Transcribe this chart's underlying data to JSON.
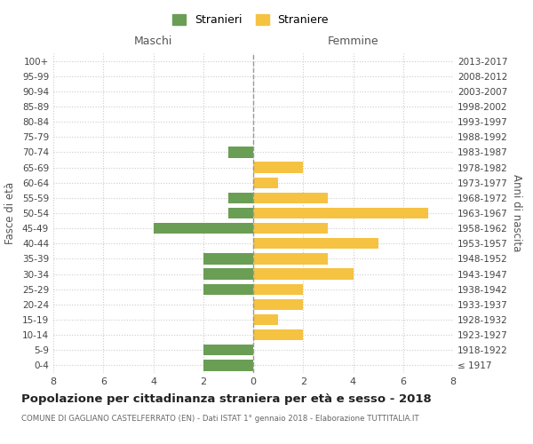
{
  "age_groups": [
    "100+",
    "95-99",
    "90-94",
    "85-89",
    "80-84",
    "75-79",
    "70-74",
    "65-69",
    "60-64",
    "55-59",
    "50-54",
    "45-49",
    "40-44",
    "35-39",
    "30-34",
    "25-29",
    "20-24",
    "15-19",
    "10-14",
    "5-9",
    "0-4"
  ],
  "birth_years": [
    "≤ 1917",
    "1918-1922",
    "1923-1927",
    "1928-1932",
    "1933-1937",
    "1938-1942",
    "1943-1947",
    "1948-1952",
    "1953-1957",
    "1958-1962",
    "1963-1967",
    "1968-1972",
    "1973-1977",
    "1978-1982",
    "1983-1987",
    "1988-1992",
    "1993-1997",
    "1998-2002",
    "2003-2007",
    "2008-2012",
    "2013-2017"
  ],
  "males": [
    0,
    0,
    0,
    0,
    0,
    0,
    1,
    0,
    0,
    1,
    1,
    4,
    0,
    2,
    2,
    2,
    0,
    0,
    0,
    2,
    2
  ],
  "females": [
    0,
    0,
    0,
    0,
    0,
    0,
    0,
    2,
    1,
    3,
    7,
    3,
    5,
    3,
    4,
    2,
    2,
    1,
    2,
    0,
    0
  ],
  "male_color": "#6a9e54",
  "female_color": "#f5c242",
  "bar_height": 0.72,
  "xlim": 8,
  "xlabel_males": "Maschi",
  "xlabel_females": "Femmine",
  "ylabel_left": "Fasce di età",
  "ylabel_right": "Anni di nascita",
  "legend_male": "Stranieri",
  "legend_female": "Straniere",
  "title": "Popolazione per cittadinanza straniera per età e sesso - 2018",
  "subtitle": "COMUNE DI GAGLIANO CASTELFERRATO (EN) - Dati ISTAT 1° gennaio 2018 - Elaborazione TUTTITALIA.IT",
  "grid_color": "#cccccc",
  "background_color": "#ffffff"
}
